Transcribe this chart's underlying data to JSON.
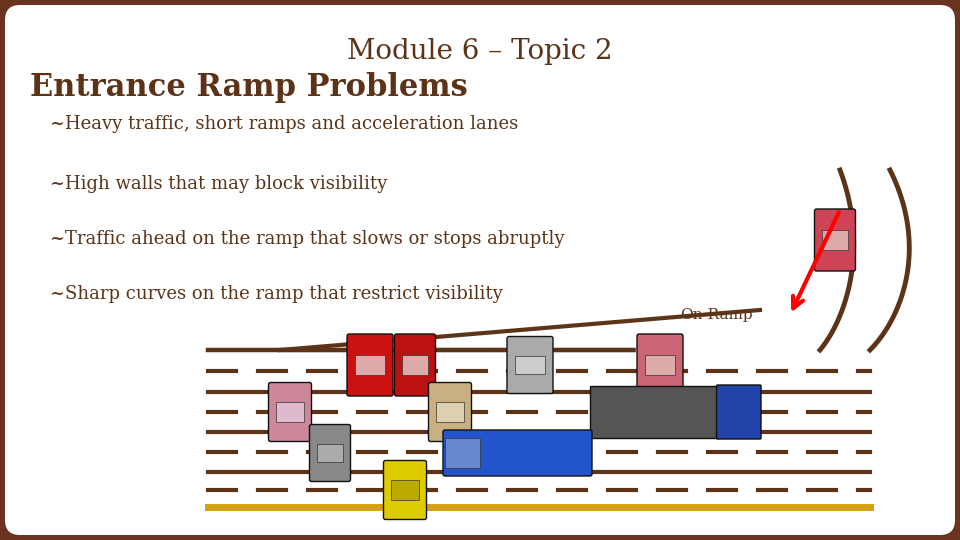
{
  "title": "Module 6 – Topic 2",
  "title_fontsize": 20,
  "title_color": "#5C3317",
  "heading": "Entrance Ramp Problems",
  "heading_fontsize": 22,
  "heading_color": "#5C3317",
  "bullets": [
    "~Heavy traffic, short ramps and acceleration lanes",
    "~High walls that may block visibility",
    "~Traffic ahead on the ramp that slows or stops abruptly",
    "~Sharp curves on the ramp that restrict visibility"
  ],
  "bullet_fontsize": 13,
  "bullet_color": "#5C3317",
  "bg_outer": "#6B3320",
  "bg_inner": "#FFFFFF",
  "on_ramp_label": "On-Ramp",
  "road_color": "#5C3317",
  "yellow_line_color": "#D4A017"
}
